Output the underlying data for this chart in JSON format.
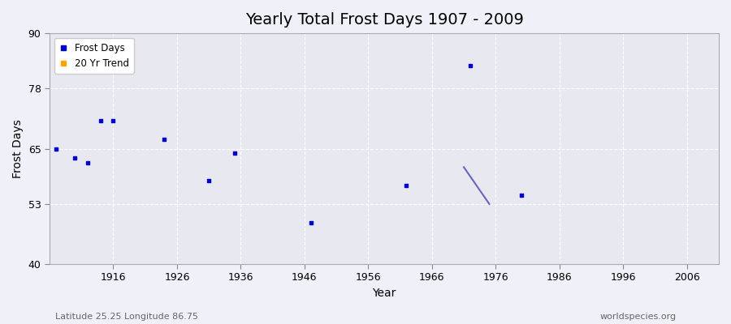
{
  "title": "Yearly Total Frost Days 1907 - 2009",
  "xlabel": "Year",
  "ylabel": "Frost Days",
  "xlim": [
    1906,
    2011
  ],
  "ylim": [
    40,
    90
  ],
  "yticks": [
    40,
    53,
    65,
    78,
    90
  ],
  "xticks": [
    1916,
    1926,
    1936,
    1946,
    1956,
    1966,
    1976,
    1986,
    1996,
    2006
  ],
  "frost_days_x": [
    1907,
    1910,
    1912,
    1914,
    1916,
    1924,
    1931,
    1935,
    1947,
    1962,
    1972,
    1980
  ],
  "frost_days_y": [
    65,
    63,
    62,
    71,
    71,
    67,
    58,
    64,
    49,
    57,
    83,
    55
  ],
  "trend_x": [
    1971,
    1975
  ],
  "trend_y": [
    61,
    53
  ],
  "fig_bg_color": "#f0f0f8",
  "plot_bg_color": "#e8e8f0",
  "dot_color": "#0000cc",
  "trend_color": "#6666bb",
  "grid_color": "#ffffff",
  "legend_frost_color": "#0000cc",
  "legend_trend_color": "#ffa500",
  "subtitle_left": "Latitude 25.25 Longitude 86.75",
  "subtitle_right": "worldspecies.org",
  "title_fontsize": 14,
  "axis_label_fontsize": 10,
  "tick_fontsize": 9
}
